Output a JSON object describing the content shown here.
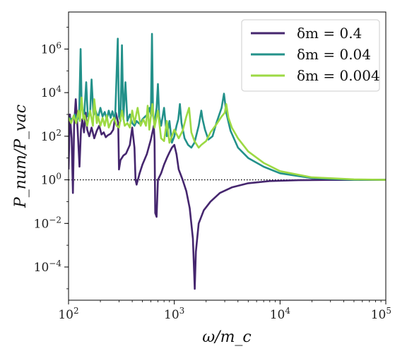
{
  "chart_data": {
    "type": "line",
    "x_scale": "log",
    "y_scale": "log",
    "xlim": [
      100,
      100000
    ],
    "ylim": [
      3e-06,
      50000000.0
    ],
    "xlabel": "ω/m_c",
    "ylabel": "P_num/P_vac",
    "x_ticks": [
      {
        "value": 100,
        "label": "10",
        "exp": "2"
      },
      {
        "value": 1000,
        "label": "10",
        "exp": "3"
      },
      {
        "value": 10000,
        "label": "10",
        "exp": "4"
      },
      {
        "value": 100000,
        "label": "10",
        "exp": "5"
      }
    ],
    "y_ticks": [
      {
        "value": 0.0001,
        "label": "10",
        "exp": "−4"
      },
      {
        "value": 0.01,
        "label": "10",
        "exp": "−2"
      },
      {
        "value": 1,
        "label": "10",
        "exp": "0"
      },
      {
        "value": 100,
        "label": "10",
        "exp": "2"
      },
      {
        "value": 10000,
        "label": "10",
        "exp": "4"
      },
      {
        "value": 1000000,
        "label": "10",
        "exp": "6"
      }
    ],
    "reference_line": {
      "y": 1,
      "style": "dotted",
      "color": "#000000"
    },
    "legend_position": "top-right",
    "series": [
      {
        "name": "δm = 0.4",
        "color": "#45266e",
        "points": [
          [
            100,
            3
          ],
          [
            103,
            1000
          ],
          [
            107,
            80
          ],
          [
            110,
            0.25
          ],
          [
            113,
            300
          ],
          [
            117,
            5000
          ],
          [
            122,
            200
          ],
          [
            127,
            4
          ],
          [
            131,
            200
          ],
          [
            135,
            600
          ],
          [
            140,
            150
          ],
          [
            145,
            1200
          ],
          [
            150,
            200
          ],
          [
            157,
            100
          ],
          [
            165,
            250
          ],
          [
            175,
            80
          ],
          [
            185,
            180
          ],
          [
            195,
            300
          ],
          [
            205,
            120
          ],
          [
            215,
            150
          ],
          [
            225,
            90
          ],
          [
            235,
            110
          ],
          [
            250,
            130
          ],
          [
            265,
            200
          ],
          [
            280,
            1200
          ],
          [
            295,
            400
          ],
          [
            300,
            3
          ],
          [
            310,
            8
          ],
          [
            330,
            13
          ],
          [
            350,
            16
          ],
          [
            380,
            40
          ],
          [
            400,
            250
          ],
          [
            420,
            30
          ],
          [
            430,
            1
          ],
          [
            440,
            0.6
          ],
          [
            470,
            2
          ],
          [
            500,
            5
          ],
          [
            550,
            15
          ],
          [
            600,
            70
          ],
          [
            640,
            300
          ],
          [
            650,
            60
          ],
          [
            660,
            0.03
          ],
          [
            680,
            0.02
          ],
          [
            700,
            1
          ],
          [
            750,
            2
          ],
          [
            800,
            5
          ],
          [
            850,
            10
          ],
          [
            900,
            18
          ],
          [
            950,
            30
          ],
          [
            1000,
            40
          ],
          [
            1050,
            15
          ],
          [
            1100,
            3
          ],
          [
            1200,
            1
          ],
          [
            1300,
            0.3
          ],
          [
            1400,
            0.05
          ],
          [
            1500,
            0.002
          ],
          [
            1560,
            1e-05
          ],
          [
            1600,
            0.0005
          ],
          [
            1700,
            0.01
          ],
          [
            1900,
            0.04
          ],
          [
            2200,
            0.1
          ],
          [
            2700,
            0.25
          ],
          [
            3500,
            0.45
          ],
          [
            5000,
            0.7
          ],
          [
            8000,
            0.88
          ],
          [
            15000,
            0.96
          ],
          [
            30000,
            0.99
          ],
          [
            100000,
            1
          ]
        ]
      },
      {
        "name": "δm = 0.04",
        "color": "#23918a",
        "points": [
          [
            100,
            700
          ],
          [
            108,
            600
          ],
          [
            115,
            1000
          ],
          [
            120,
            500
          ],
          [
            126,
            1000
          ],
          [
            130,
            1000000
          ],
          [
            133,
            3000
          ],
          [
            140,
            700
          ],
          [
            147,
            30000
          ],
          [
            152,
            800
          ],
          [
            160,
            1200
          ],
          [
            165,
            40000
          ],
          [
            172,
            900
          ],
          [
            180,
            1500
          ],
          [
            190,
            700
          ],
          [
            200,
            2000
          ],
          [
            210,
            800
          ],
          [
            220,
            1300
          ],
          [
            230,
            600
          ],
          [
            240,
            1500
          ],
          [
            250,
            700
          ],
          [
            260,
            1400
          ],
          [
            275,
            500
          ],
          [
            292,
            3000000
          ],
          [
            300,
            800
          ],
          [
            310,
            500
          ],
          [
            320,
            1500000
          ],
          [
            330,
            600
          ],
          [
            345,
            30000
          ],
          [
            360,
            500
          ],
          [
            380,
            1000
          ],
          [
            400,
            400
          ],
          [
            420,
            300
          ],
          [
            440,
            500
          ],
          [
            460,
            400
          ],
          [
            480,
            350
          ],
          [
            500,
            600
          ],
          [
            530,
            800
          ],
          [
            560,
            1000
          ],
          [
            585,
            2000
          ],
          [
            600,
            1000
          ],
          [
            615,
            5000000
          ],
          [
            630,
            900
          ],
          [
            650,
            400
          ],
          [
            680,
            2000
          ],
          [
            700,
            25000
          ],
          [
            720,
            800
          ],
          [
            750,
            300
          ],
          [
            800,
            2000
          ],
          [
            850,
            100
          ],
          [
            900,
            500
          ],
          [
            950,
            50
          ],
          [
            1000,
            100
          ],
          [
            1050,
            300
          ],
          [
            1090,
            600
          ],
          [
            1130,
            3000
          ],
          [
            1170,
            400
          ],
          [
            1250,
            80
          ],
          [
            1350,
            40
          ],
          [
            1450,
            30
          ],
          [
            1550,
            50
          ],
          [
            1700,
            300
          ],
          [
            1800,
            1500
          ],
          [
            1850,
            600
          ],
          [
            1950,
            200
          ],
          [
            2100,
            70
          ],
          [
            2300,
            100
          ],
          [
            2500,
            400
          ],
          [
            2800,
            2000
          ],
          [
            2950,
            9000
          ],
          [
            3100,
            1200
          ],
          [
            3400,
            180
          ],
          [
            4000,
            30
          ],
          [
            5000,
            10
          ],
          [
            7000,
            4
          ],
          [
            10000,
            2
          ],
          [
            20000,
            1.2
          ],
          [
            50000,
            1
          ],
          [
            100000,
            1
          ]
        ]
      },
      {
        "name": "δm = 0.004",
        "color": "#9cd943",
        "points": [
          [
            100,
            700
          ],
          [
            106,
            400
          ],
          [
            112,
            900
          ],
          [
            118,
            400
          ],
          [
            124,
            1500
          ],
          [
            128,
            500
          ],
          [
            133,
            6000
          ],
          [
            138,
            600
          ],
          [
            142,
            900
          ],
          [
            150,
            300
          ],
          [
            160,
            1500
          ],
          [
            170,
            300
          ],
          [
            175,
            5000
          ],
          [
            185,
            400
          ],
          [
            190,
            800
          ],
          [
            200,
            300
          ],
          [
            210,
            700
          ],
          [
            220,
            300
          ],
          [
            230,
            900
          ],
          [
            240,
            250
          ],
          [
            255,
            500
          ],
          [
            270,
            700
          ],
          [
            285,
            300
          ],
          [
            300,
            250
          ],
          [
            320,
            1500
          ],
          [
            340,
            300
          ],
          [
            360,
            400
          ],
          [
            380,
            250
          ],
          [
            400,
            1500
          ],
          [
            420,
            400
          ],
          [
            450,
            2000
          ],
          [
            480,
            300
          ],
          [
            510,
            600
          ],
          [
            540,
            300
          ],
          [
            560,
            2500
          ],
          [
            580,
            200
          ],
          [
            620,
            3000
          ],
          [
            650,
            250
          ],
          [
            700,
            1500
          ],
          [
            750,
            80
          ],
          [
            800,
            60
          ],
          [
            850,
            500
          ],
          [
            900,
            50
          ],
          [
            1000,
            200
          ],
          [
            1100,
            80
          ],
          [
            1200,
            180
          ],
          [
            1300,
            800
          ],
          [
            1380,
            2000
          ],
          [
            1450,
            150
          ],
          [
            1550,
            60
          ],
          [
            1700,
            30
          ],
          [
            1800,
            40
          ],
          [
            2000,
            60
          ],
          [
            2200,
            150
          ],
          [
            2500,
            350
          ],
          [
            2800,
            800
          ],
          [
            3000,
            1200
          ],
          [
            3100,
            3000
          ],
          [
            3250,
            700
          ],
          [
            3500,
            250
          ],
          [
            4000,
            80
          ],
          [
            5000,
            20
          ],
          [
            7000,
            6
          ],
          [
            10000,
            2.5
          ],
          [
            20000,
            1.3
          ],
          [
            50000,
            1.05
          ],
          [
            100000,
            1
          ]
        ]
      }
    ]
  }
}
